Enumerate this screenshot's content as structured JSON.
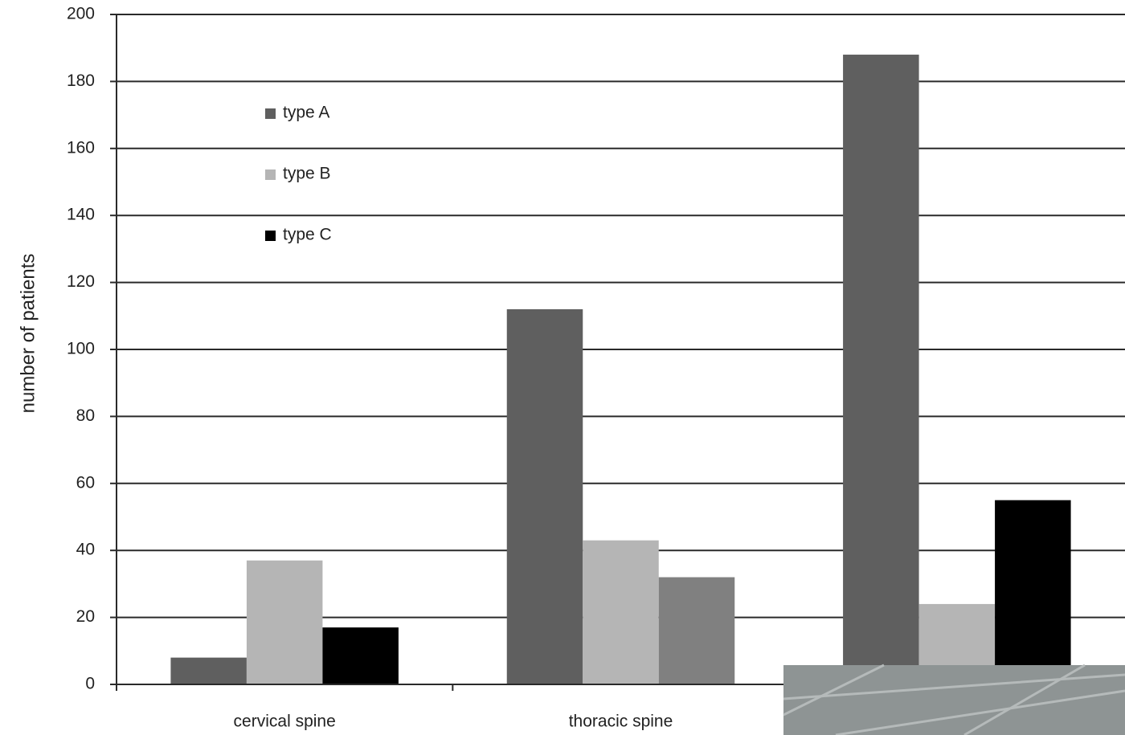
{
  "chart_data": {
    "type": "bar",
    "y_label": "number of patients",
    "categories": [
      "cervical spine",
      "thoracic spine",
      null
    ],
    "series": [
      {
        "name": "type A",
        "color": "#5f5f5f",
        "values": [
          8,
          112,
          188
        ]
      },
      {
        "name": "type B",
        "color": "#b5b5b5",
        "values": [
          37,
          43,
          24
        ]
      },
      {
        "name": "type C",
        "color": "#000000",
        "colors": [
          "#000000",
          "#808080",
          "#000000"
        ],
        "values": [
          17,
          32,
          55
        ]
      }
    ],
    "ylim": [
      0,
      200
    ],
    "yticks": [
      0,
      20,
      40,
      60,
      80,
      100,
      120,
      140,
      160,
      180,
      200
    ],
    "grid": true
  }
}
